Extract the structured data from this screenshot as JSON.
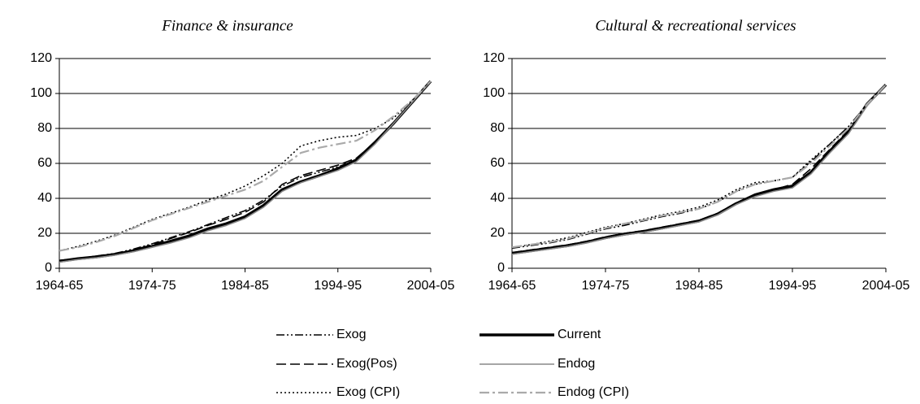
{
  "chart_data": [
    {
      "type": "line",
      "title": "Finance & insurance",
      "categories": [
        "1964-65",
        null,
        null,
        null,
        null,
        "1974-75",
        null,
        null,
        null,
        null,
        "1984-85",
        null,
        null,
        null,
        null,
        "1994-95",
        null,
        null,
        null,
        null,
        "2004-05"
      ],
      "ylim": [
        0,
        120
      ],
      "yticks": [
        0,
        20,
        40,
        60,
        80,
        100,
        120
      ],
      "grid": true,
      "series": [
        {
          "name": "Exog",
          "color": "#000000",
          "dash": "10 3 2 3 2 3",
          "width": 1.6,
          "values": [
            4.5,
            5.5,
            7,
            8.5,
            11,
            14,
            17.5,
            21,
            25,
            29,
            33,
            39,
            47,
            52,
            55,
            58,
            62,
            72,
            83,
            95,
            107
          ]
        },
        {
          "name": "Exog(Pos)",
          "color": "#000000",
          "dash": "12 5",
          "width": 1.6,
          "values": [
            4.5,
            5.5,
            7,
            8,
            10.5,
            13.5,
            17,
            20.5,
            24.5,
            28,
            32,
            38,
            48,
            53,
            56,
            59,
            63,
            72,
            83,
            95,
            107
          ]
        },
        {
          "name": "Exog (CPI)",
          "color": "#000000",
          "dash": "2 3",
          "width": 1.6,
          "values": [
            10,
            12.5,
            15.5,
            19,
            23.5,
            28,
            31.5,
            35,
            39,
            42.5,
            47,
            53,
            60,
            70,
            73,
            75,
            76,
            80,
            86,
            96,
            107
          ]
        },
        {
          "name": "Current",
          "color": "#000000",
          "dash": "none",
          "width": 3.5,
          "values": [
            4,
            5.5,
            6.5,
            8,
            10,
            12.5,
            15.5,
            18.5,
            22.5,
            25.5,
            29.5,
            36,
            45,
            49.5,
            53,
            57,
            62,
            72,
            83,
            95,
            107
          ]
        },
        {
          "name": "Endog",
          "color": "#888888",
          "dash": "none",
          "width": 1.6,
          "values": [
            3.5,
            5,
            6,
            7.5,
            9.5,
            12,
            14.5,
            17.5,
            21.5,
            24.5,
            28.5,
            35,
            44,
            49,
            52.5,
            56,
            61,
            71,
            83,
            95,
            107
          ]
        },
        {
          "name": "Endog (CPI)",
          "color": "#aaaaaa",
          "dash": "12 4 3 4",
          "width": 2.2,
          "values": [
            10,
            12,
            15,
            18.5,
            23,
            27.5,
            31,
            34.5,
            38,
            41.5,
            45,
            50,
            58,
            66,
            69,
            71,
            73,
            79,
            87,
            96,
            107
          ]
        }
      ]
    },
    {
      "type": "line",
      "title": "Cultural & recreational services",
      "categories": [
        "1964-65",
        null,
        null,
        null,
        null,
        "1974-75",
        null,
        null,
        null,
        null,
        "1984-85",
        null,
        null,
        null,
        null,
        "1994-95",
        null,
        null,
        null,
        null,
        "2004-05"
      ],
      "ylim": [
        0,
        120
      ],
      "yticks": [
        0,
        20,
        40,
        60,
        80,
        100,
        120
      ],
      "grid": true,
      "series": [
        {
          "name": "Exog",
          "color": "#000000",
          "dash": "10 3 2 3 2 3",
          "width": 1.6,
          "values": [
            11.5,
            13,
            14.5,
            16.5,
            19.5,
            22.5,
            24.5,
            27,
            29.5,
            31.5,
            34,
            38,
            44,
            48,
            50,
            52,
            61,
            71,
            81,
            94,
            105
          ]
        },
        {
          "name": "Exog(Pos)",
          "color": "#000000",
          "dash": "12 5",
          "width": 1.6,
          "values": [
            9,
            10.5,
            12,
            13.5,
            15.5,
            18,
            20,
            21.5,
            23.5,
            25.5,
            27.5,
            31.5,
            37.5,
            42,
            45,
            48,
            57,
            68,
            79,
            94,
            105
          ]
        },
        {
          "name": "Exog (CPI)",
          "color": "#000000",
          "dash": "2 3",
          "width": 1.6,
          "values": [
            12,
            13.5,
            15.5,
            17.5,
            20.5,
            23.5,
            25.5,
            28,
            30.5,
            32.5,
            35,
            39,
            45,
            49,
            50,
            52,
            62,
            71,
            81,
            94,
            105
          ]
        },
        {
          "name": "Current",
          "color": "#000000",
          "dash": "none",
          "width": 3.5,
          "values": [
            8.5,
            10,
            11.5,
            13,
            15,
            17.5,
            19.5,
            21,
            23,
            25,
            27,
            31,
            37,
            42,
            45,
            47,
            55,
            67,
            78,
            94,
            105
          ]
        },
        {
          "name": "Endog",
          "color": "#888888",
          "dash": "none",
          "width": 1.6,
          "values": [
            8,
            9.5,
            11,
            12.5,
            14.5,
            17,
            19,
            20.5,
            22.5,
            24.5,
            26.5,
            30.5,
            36.5,
            41,
            44,
            46,
            54,
            66,
            77,
            93,
            105
          ]
        },
        {
          "name": "Endog (CPI)",
          "color": "#aaaaaa",
          "dash": "12 4 3 4",
          "width": 2.2,
          "values": [
            12,
            13.5,
            15,
            17,
            20,
            23,
            25.5,
            27.5,
            30,
            32,
            34,
            38,
            44,
            48,
            50,
            52,
            60,
            70,
            80,
            94,
            105
          ]
        }
      ]
    }
  ]
}
